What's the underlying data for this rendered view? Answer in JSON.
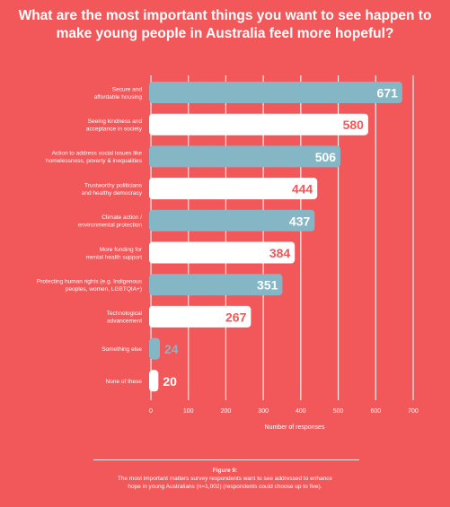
{
  "header": {
    "title_line1": "What are the most important things you want to see happen to",
    "title_line2": "make young people in Australia feel more hopeful?"
  },
  "chart_data": {
    "type": "bar",
    "orientation": "horizontal",
    "categories": [
      [
        "Secure and",
        "affordable housing"
      ],
      [
        "Seeing kindness and",
        "acceptance in society"
      ],
      [
        "Action to address social issues like",
        "homelessness, poverty & inequalities"
      ],
      [
        "Trustworthy politicians",
        "and healthy democracy"
      ],
      [
        "Climate action /",
        "environmental protection"
      ],
      [
        "More funding for",
        "mental health support"
      ],
      [
        "Protecting human rights (e.g. Indigenous",
        "peoples, women, LGBTQIA+)"
      ],
      [
        "Technological",
        "advancement"
      ],
      [
        "Something else"
      ],
      [
        "None of these"
      ]
    ],
    "values": [
      671,
      580,
      506,
      444,
      437,
      384,
      351,
      267,
      24,
      20
    ],
    "bar_styles": [
      "blue",
      "white",
      "blue",
      "white",
      "blue",
      "white",
      "blue",
      "white",
      "blue",
      "white"
    ],
    "xlim": [
      0,
      700
    ],
    "xticks": [
      0,
      100,
      200,
      300,
      400,
      500,
      600,
      700
    ],
    "xlabel": "Number of responses",
    "grid": true,
    "colors": {
      "background": "#f2575a",
      "blue_bar": "#85b6c6",
      "white_bar": "#ffffff",
      "label_on_blue": "#ffffff",
      "label_on_white": "#f2575a",
      "gridline": "#ffffff"
    }
  },
  "caption": {
    "heading": "Figure 9:",
    "line1": "The most important matters survey respondents want to see addressed to enhance",
    "line2": "hope in young Australians (n=1,002) (respondents could choose up to five)."
  }
}
